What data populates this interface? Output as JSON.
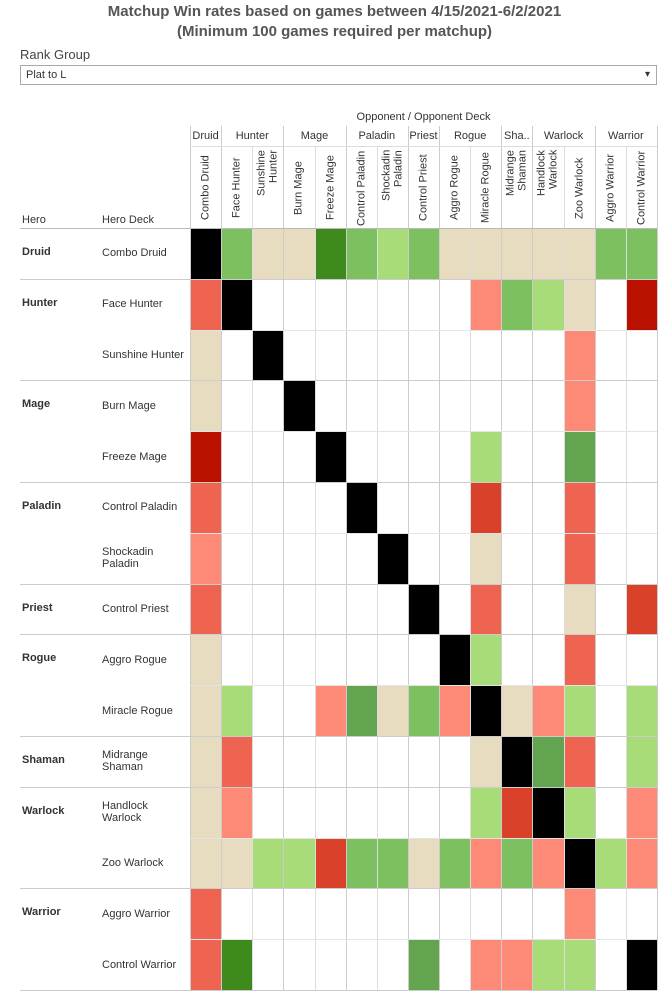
{
  "header": {
    "title_line1": "Matchup Win rates based on games between 4/15/2021-6/2/2021",
    "title_line2": "(Minimum 100 games required per matchup)"
  },
  "filter": {
    "label": "Rank Group",
    "value": "Plat to L"
  },
  "table": {
    "column_header_title": "Opponent / Opponent Deck",
    "row_header_labels": [
      "Hero",
      "Hero Deck"
    ],
    "column_groups": [
      {
        "label": "Druid",
        "decks": [
          "Combo Druid"
        ]
      },
      {
        "label": "Hunter",
        "decks": [
          "Face Hunter",
          "Sunshine Hunter"
        ]
      },
      {
        "label": "Mage",
        "decks": [
          "Burn Mage",
          "Freeze Mage"
        ]
      },
      {
        "label": "Paladin",
        "decks": [
          "Control Paladin",
          "Shockadin Paladin"
        ]
      },
      {
        "label": "Priest",
        "decks": [
          "Control Priest"
        ]
      },
      {
        "label": "Rogue",
        "decks": [
          "Aggro Rogue",
          "Miracle Rogue"
        ]
      },
      {
        "label": "Sha..",
        "decks": [
          "Midrange Shaman"
        ]
      },
      {
        "label": "Warlock",
        "decks": [
          "Handlock Warlock",
          "Zoo Warlock"
        ]
      },
      {
        "label": "Warrior",
        "decks": [
          "Aggro Warrior",
          "Control Warrior"
        ]
      }
    ],
    "row_groups": [
      {
        "label": "Druid",
        "decks": [
          {
            "name": "Combo Druid",
            "cells": [
              "#000000",
              "#7cc060",
              "#e8dcc0",
              "#e8dcc0",
              "#3f8a1d",
              "#7cc060",
              "#a8dc78",
              "#7cc060",
              "#e8dcc0",
              "#e8dcc0",
              "#e8dcc0",
              "#e8dcc0",
              "#e8dcc0",
              "#7cc060",
              "#7cc060"
            ]
          }
        ]
      },
      {
        "label": "Hunter",
        "decks": [
          {
            "name": "Face Hunter",
            "cells": [
              "#ee6450",
              "#000000",
              null,
              null,
              null,
              null,
              null,
              null,
              null,
              "#fd8a76",
              "#7cc060",
              "#a8dc78",
              "#e8dcc0",
              null,
              "#b91000"
            ]
          },
          {
            "name": "Sunshine Hunter",
            "cells": [
              "#e8dcc0",
              null,
              "#000000",
              null,
              null,
              null,
              null,
              null,
              null,
              null,
              null,
              null,
              "#fd8a76",
              null,
              null
            ]
          }
        ]
      },
      {
        "label": "Mage",
        "decks": [
          {
            "name": "Burn Mage",
            "cells": [
              "#e8dcc0",
              null,
              null,
              "#000000",
              null,
              null,
              null,
              null,
              null,
              null,
              null,
              null,
              "#fd8a76",
              null,
              null
            ]
          },
          {
            "name": "Freeze Mage",
            "cells": [
              "#b91000",
              null,
              null,
              null,
              "#000000",
              null,
              null,
              null,
              null,
              "#a8dc78",
              null,
              null,
              "#62a450",
              null,
              null
            ]
          }
        ]
      },
      {
        "label": "Paladin",
        "decks": [
          {
            "name": "Control Paladin",
            "cells": [
              "#ee6450",
              null,
              null,
              null,
              null,
              "#000000",
              null,
              null,
              null,
              "#d9412a",
              null,
              null,
              "#ee6450",
              null,
              null
            ]
          },
          {
            "name": "Shockadin Paladin",
            "cells": [
              "#fd8a76",
              null,
              null,
              null,
              null,
              null,
              "#000000",
              null,
              null,
              "#e8dcc0",
              null,
              null,
              "#ee6450",
              null,
              null
            ]
          }
        ]
      },
      {
        "label": "Priest",
        "decks": [
          {
            "name": "Control Priest",
            "cells": [
              "#ee6450",
              null,
              null,
              null,
              null,
              null,
              null,
              "#000000",
              null,
              "#ee6450",
              null,
              null,
              "#e8dcc0",
              null,
              "#d9412a"
            ]
          }
        ]
      },
      {
        "label": "Rogue",
        "decks": [
          {
            "name": "Aggro Rogue",
            "cells": [
              "#e8dcc0",
              null,
              null,
              null,
              null,
              null,
              null,
              null,
              "#000000",
              "#a8dc78",
              null,
              null,
              "#ee6450",
              null,
              null
            ]
          },
          {
            "name": "Miracle Rogue",
            "cells": [
              "#e8dcc0",
              "#a8dc78",
              null,
              null,
              "#fd8a76",
              "#62a450",
              "#e8dcc0",
              "#7cc060",
              "#fd8a76",
              "#000000",
              "#e8dcc0",
              "#fd8a76",
              "#a8dc78",
              null,
              "#a8dc78"
            ]
          }
        ]
      },
      {
        "label": "Shaman",
        "decks": [
          {
            "name": "Midrange Shaman",
            "cells": [
              "#e8dcc0",
              "#ee6450",
              null,
              null,
              null,
              null,
              null,
              null,
              null,
              "#e8dcc0",
              "#000000",
              "#62a450",
              "#ee6450",
              null,
              "#a8dc78"
            ]
          }
        ]
      },
      {
        "label": "Warlock",
        "decks": [
          {
            "name": "Handlock Warlock",
            "cells": [
              "#e8dcc0",
              "#fd8a76",
              null,
              null,
              null,
              null,
              null,
              null,
              null,
              "#a8dc78",
              "#d9412a",
              "#000000",
              "#a8dc78",
              null,
              "#fd8a76"
            ]
          },
          {
            "name": "Zoo Warlock",
            "cells": [
              "#e8dcc0",
              "#e8dcc0",
              "#a8dc78",
              "#a8dc78",
              "#d9412a",
              "#7cc060",
              "#7cc060",
              "#e8dcc0",
              "#7cc060",
              "#fd8a76",
              "#7cc060",
              "#fd8a76",
              "#000000",
              "#a8dc78",
              "#fd8a76"
            ]
          }
        ]
      },
      {
        "label": "Warrior",
        "decks": [
          {
            "name": "Aggro Warrior",
            "cells": [
              "#ee6450",
              null,
              null,
              null,
              null,
              null,
              null,
              null,
              null,
              null,
              null,
              null,
              "#fd8a76",
              null,
              null
            ]
          },
          {
            "name": "Control Warrior",
            "cells": [
              "#ee6450",
              "#3f8a1d",
              null,
              null,
              null,
              null,
              null,
              "#62a450",
              null,
              "#fd8a76",
              "#fd8a76",
              "#a8dc78",
              "#a8dc78",
              null,
              "#000000"
            ]
          }
        ]
      }
    ]
  }
}
